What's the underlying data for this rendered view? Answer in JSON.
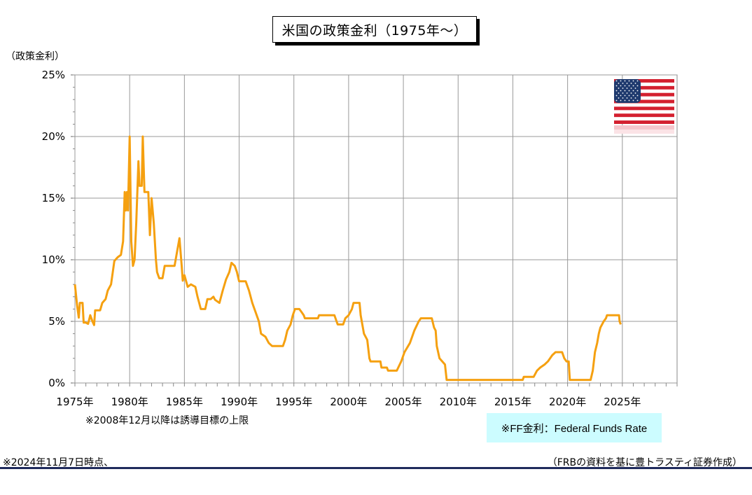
{
  "title": "米国の政策金利（1975年～）",
  "note_cap": "※2008年12月以降は誘導目標の上限",
  "ff_note": "※FF金利：Federal Funds Rate",
  "as_of": "※2024年11月7日時点、",
  "source": "（FRBの資料を基に豊トラスティ証券作成）",
  "flag_icon": "us-flag-icon",
  "colors": {
    "line": "#f5a010",
    "grid": "#999999",
    "ff_box": "#ccfcff",
    "rule": "#1f2a5c"
  },
  "chart_data": {
    "type": "line",
    "title": "米国の政策金利（1975年～）",
    "ylabel": "（政策金利）",
    "xlabel": "",
    "xlim": [
      1975,
      2030
    ],
    "ylim": [
      0,
      25
    ],
    "yticks": [
      0,
      5,
      10,
      15,
      20,
      25
    ],
    "ytick_labels": [
      "0%",
      "5%",
      "10%",
      "15%",
      "20%",
      "25%"
    ],
    "xticks": [
      1975,
      1980,
      1985,
      1990,
      1995,
      2000,
      2005,
      2010,
      2015,
      2020,
      2025
    ],
    "xtick_labels": [
      "1975年",
      "1980年",
      "1985年",
      "1990年",
      "1995年",
      "2000年",
      "2005年",
      "2010年",
      "2015年",
      "2020年",
      "2025年"
    ],
    "grid": true,
    "series": [
      {
        "values": [
          [
            1975.0,
            8.0
          ],
          [
            1975.2,
            6.3
          ],
          [
            1975.35,
            5.3
          ],
          [
            1975.45,
            6.5
          ],
          [
            1975.7,
            6.5
          ],
          [
            1975.8,
            4.9
          ],
          [
            1976.0,
            4.9
          ],
          [
            1976.2,
            4.8
          ],
          [
            1976.4,
            5.5
          ],
          [
            1976.6,
            5.0
          ],
          [
            1976.75,
            4.7
          ],
          [
            1976.85,
            5.9
          ],
          [
            1977.3,
            5.9
          ],
          [
            1977.5,
            6.5
          ],
          [
            1977.8,
            6.8
          ],
          [
            1978.0,
            7.5
          ],
          [
            1978.3,
            8.0
          ],
          [
            1978.6,
            9.9
          ],
          [
            1978.9,
            10.2
          ],
          [
            1979.2,
            10.4
          ],
          [
            1979.4,
            11.5
          ],
          [
            1979.55,
            15.5
          ],
          [
            1979.65,
            14.0
          ],
          [
            1979.75,
            15.5
          ],
          [
            1979.85,
            14.0
          ],
          [
            1980.0,
            20.0
          ],
          [
            1980.15,
            11.5
          ],
          [
            1980.3,
            9.5
          ],
          [
            1980.45,
            10.0
          ],
          [
            1980.6,
            13.0
          ],
          [
            1980.8,
            18.0
          ],
          [
            1980.9,
            16.0
          ],
          [
            1981.1,
            16.0
          ],
          [
            1981.2,
            20.0
          ],
          [
            1981.35,
            15.5
          ],
          [
            1981.7,
            15.5
          ],
          [
            1981.85,
            12.0
          ],
          [
            1982.0,
            15.0
          ],
          [
            1982.2,
            13.0
          ],
          [
            1982.4,
            10.0
          ],
          [
            1982.5,
            9.0
          ],
          [
            1982.7,
            8.5
          ],
          [
            1983.0,
            8.5
          ],
          [
            1983.2,
            9.5
          ],
          [
            1983.6,
            9.5
          ],
          [
            1984.1,
            9.5
          ],
          [
            1984.3,
            10.5
          ],
          [
            1984.55,
            11.75
          ],
          [
            1984.75,
            9.5
          ],
          [
            1984.85,
            8.3
          ],
          [
            1985.0,
            8.75
          ],
          [
            1985.3,
            7.8
          ],
          [
            1985.6,
            8.0
          ],
          [
            1986.0,
            7.8
          ],
          [
            1986.2,
            7.0
          ],
          [
            1986.5,
            6.0
          ],
          [
            1986.9,
            6.0
          ],
          [
            1987.1,
            6.8
          ],
          [
            1987.4,
            6.8
          ],
          [
            1987.65,
            7.0
          ],
          [
            1987.8,
            6.75
          ],
          [
            1988.2,
            6.5
          ],
          [
            1988.5,
            7.5
          ],
          [
            1988.8,
            8.4
          ],
          [
            1989.1,
            9.0
          ],
          [
            1989.3,
            9.75
          ],
          [
            1989.6,
            9.5
          ],
          [
            1989.8,
            9.0
          ],
          [
            1990.0,
            8.25
          ],
          [
            1990.6,
            8.25
          ],
          [
            1990.9,
            7.5
          ],
          [
            1991.2,
            6.5
          ],
          [
            1991.5,
            5.75
          ],
          [
            1991.8,
            5.0
          ],
          [
            1992.0,
            4.0
          ],
          [
            1992.4,
            3.75
          ],
          [
            1992.7,
            3.25
          ],
          [
            1993.0,
            3.0
          ],
          [
            1994.0,
            3.0
          ],
          [
            1994.2,
            3.5
          ],
          [
            1994.4,
            4.25
          ],
          [
            1994.7,
            4.75
          ],
          [
            1994.9,
            5.5
          ],
          [
            1995.1,
            6.0
          ],
          [
            1995.5,
            6.0
          ],
          [
            1995.7,
            5.75
          ],
          [
            1995.9,
            5.5
          ],
          [
            1996.0,
            5.25
          ],
          [
            1997.2,
            5.25
          ],
          [
            1997.3,
            5.5
          ],
          [
            1998.7,
            5.5
          ],
          [
            1998.9,
            5.0
          ],
          [
            1999.0,
            4.75
          ],
          [
            1999.5,
            4.75
          ],
          [
            1999.7,
            5.25
          ],
          [
            2000.0,
            5.5
          ],
          [
            2000.3,
            6.0
          ],
          [
            2000.45,
            6.5
          ],
          [
            2001.0,
            6.5
          ],
          [
            2001.1,
            5.5
          ],
          [
            2001.4,
            4.0
          ],
          [
            2001.7,
            3.5
          ],
          [
            2001.9,
            2.0
          ],
          [
            2002.0,
            1.75
          ],
          [
            2002.9,
            1.75
          ],
          [
            2003.0,
            1.25
          ],
          [
            2003.5,
            1.25
          ],
          [
            2003.6,
            1.0
          ],
          [
            2004.4,
            1.0
          ],
          [
            2004.8,
            1.75
          ],
          [
            2005.1,
            2.5
          ],
          [
            2005.6,
            3.25
          ],
          [
            2006.0,
            4.25
          ],
          [
            2006.4,
            5.0
          ],
          [
            2006.6,
            5.25
          ],
          [
            2007.6,
            5.25
          ],
          [
            2007.8,
            4.5
          ],
          [
            2007.95,
            4.25
          ],
          [
            2008.05,
            3.0
          ],
          [
            2008.3,
            2.0
          ],
          [
            2008.8,
            1.5
          ],
          [
            2008.95,
            0.25
          ],
          [
            2015.9,
            0.25
          ],
          [
            2016.0,
            0.5
          ],
          [
            2016.9,
            0.5
          ],
          [
            2017.2,
            1.0
          ],
          [
            2017.5,
            1.25
          ],
          [
            2017.9,
            1.5
          ],
          [
            2018.2,
            1.75
          ],
          [
            2018.6,
            2.25
          ],
          [
            2018.9,
            2.5
          ],
          [
            2019.5,
            2.5
          ],
          [
            2019.7,
            2.0
          ],
          [
            2019.9,
            1.75
          ],
          [
            2020.1,
            1.75
          ],
          [
            2020.2,
            0.25
          ],
          [
            2022.1,
            0.25
          ],
          [
            2022.3,
            1.0
          ],
          [
            2022.5,
            2.5
          ],
          [
            2022.7,
            3.25
          ],
          [
            2022.85,
            4.0
          ],
          [
            2023.0,
            4.5
          ],
          [
            2023.3,
            5.0
          ],
          [
            2023.5,
            5.25
          ],
          [
            2023.6,
            5.5
          ],
          [
            2024.7,
            5.5
          ],
          [
            2024.75,
            5.0
          ],
          [
            2024.85,
            4.75
          ]
        ]
      }
    ]
  }
}
